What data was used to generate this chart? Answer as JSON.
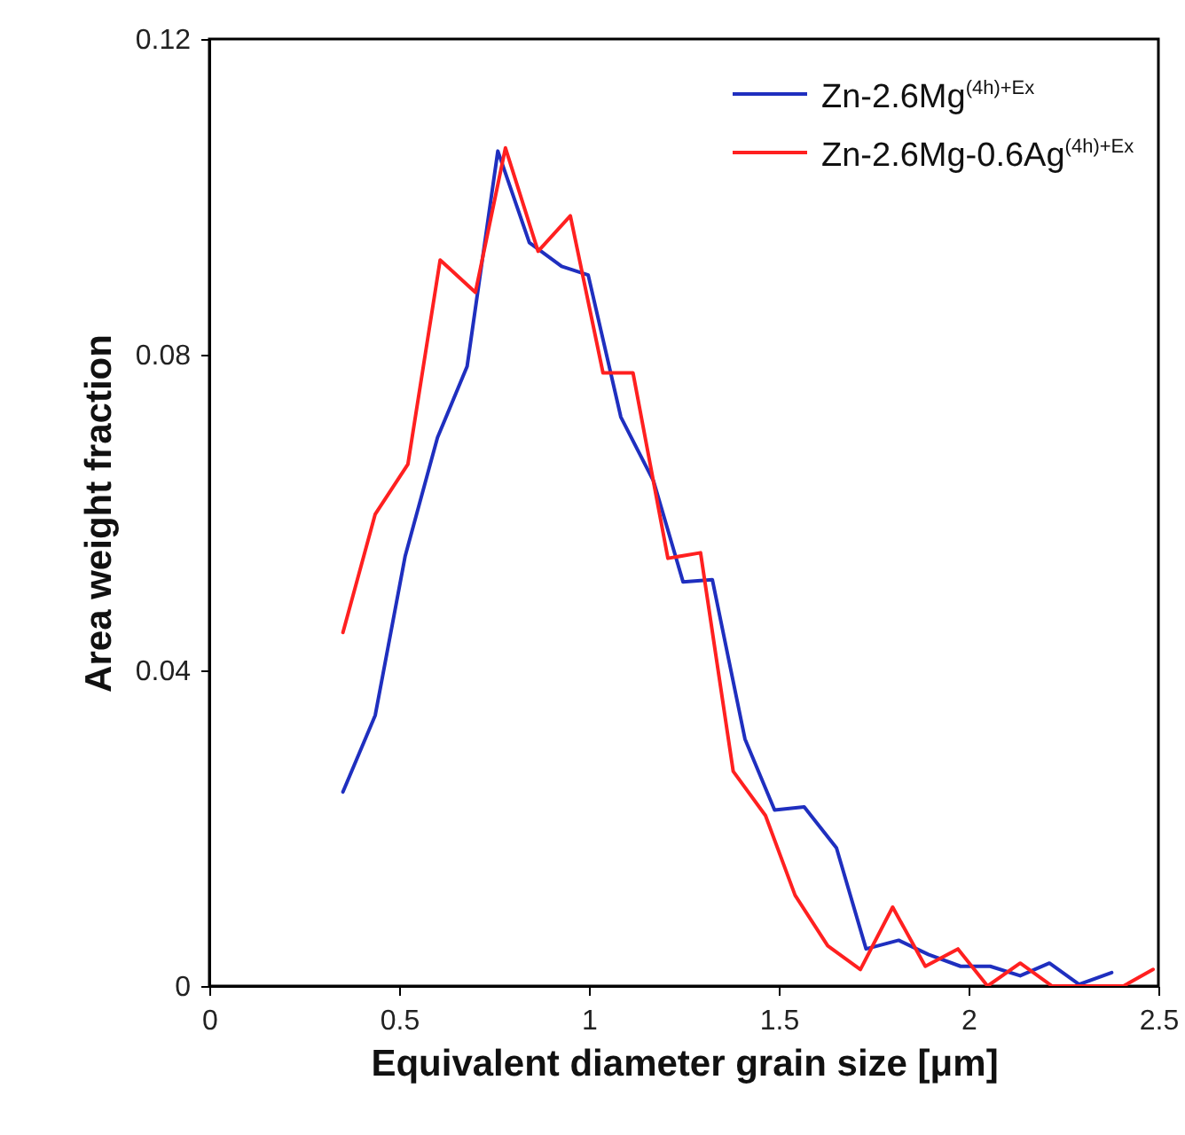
{
  "chart_data": {
    "type": "line",
    "xlabel": "Equivalent diameter grain size [μm]",
    "ylabel": "Area weight fraction",
    "xlim": [
      0,
      2.5
    ],
    "xticks": [
      0,
      0.5,
      1,
      1.5,
      2,
      2.5
    ],
    "ylim": [
      0,
      0.12
    ],
    "yticks": [
      0,
      0.04,
      0.08,
      0.12
    ],
    "legend": "top right",
    "grid": false,
    "marker": "none",
    "line_style": "solid",
    "series": [
      {
        "name": "Zn-2.6Mg$^{(4h)+Ex}$",
        "color": "#1f2fbf",
        "x": [
          0.352,
          0.437,
          0.516,
          0.601,
          0.679,
          0.76,
          0.843,
          0.928,
          0.998,
          1.084,
          1.17,
          1.248,
          1.325,
          1.411,
          1.489,
          1.567,
          1.652,
          1.73,
          1.816,
          1.894,
          1.979,
          2.057,
          2.136,
          2.213,
          2.291,
          2.377
        ],
        "values": [
          0.0246,
          0.0343,
          0.0545,
          0.0695,
          0.0785,
          0.1058,
          0.0942,
          0.0912,
          0.0901,
          0.0721,
          0.064,
          0.0512,
          0.0515,
          0.0313,
          0.0223,
          0.0227,
          0.0175,
          0.0047,
          0.0058,
          0.004,
          0.0025,
          0.0025,
          0.0013,
          0.0029,
          0.0002,
          0.0017
        ]
      },
      {
        "name": "Zn-2.6Mg-0.6Ag$^{(4h)+Ex}$",
        "color": "#ff2020",
        "x": [
          0.352,
          0.437,
          0.523,
          0.608,
          0.701,
          0.78,
          0.866,
          0.951,
          1.037,
          1.116,
          1.208,
          1.294,
          1.38,
          1.465,
          1.543,
          1.629,
          1.715,
          1.8,
          1.886,
          1.972,
          2.05,
          2.136,
          2.22,
          2.31,
          2.408,
          2.486
        ],
        "values": [
          0.0448,
          0.0598,
          0.0661,
          0.092,
          0.0879,
          0.1062,
          0.0931,
          0.0976,
          0.0777,
          0.0777,
          0.0542,
          0.0549,
          0.0272,
          0.0216,
          0.0115,
          0.0051,
          0.0021,
          0.01,
          0.0025,
          0.0047,
          0,
          0.0029,
          0,
          0,
          0,
          0.0021
        ]
      }
    ]
  }
}
